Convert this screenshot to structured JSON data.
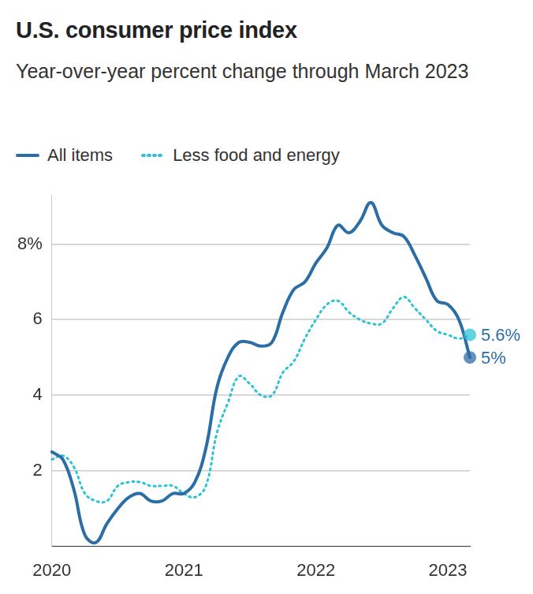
{
  "chart_data": {
    "type": "line",
    "title": "U.S. consumer price index",
    "subtitle": "Year-over-year percent change through March 2023",
    "categories": [
      "2020",
      null,
      null,
      null,
      null,
      null,
      null,
      null,
      null,
      null,
      null,
      null,
      "2021",
      null,
      null,
      null,
      null,
      null,
      null,
      null,
      null,
      null,
      null,
      null,
      "2022",
      null,
      null,
      null,
      null,
      null,
      null,
      null,
      null,
      null,
      null,
      null,
      "2023",
      null,
      null
    ],
    "series": [
      {
        "name": "All items",
        "color": "#2b6ea6",
        "line_style": "solid",
        "values": [
          2.5,
          2.3,
          1.5,
          0.3,
          0.1,
          0.6,
          1.0,
          1.3,
          1.4,
          1.2,
          1.2,
          1.4,
          1.4,
          1.7,
          2.6,
          4.2,
          5.0,
          5.4,
          5.4,
          5.3,
          5.4,
          6.2,
          6.8,
          7.0,
          7.5,
          7.9,
          8.5,
          8.3,
          8.6,
          9.1,
          8.5,
          8.3,
          8.2,
          7.7,
          7.1,
          6.5,
          6.4,
          6.0,
          5.0
        ],
        "value_labels": [
          null,
          null,
          null,
          null,
          null,
          null,
          null,
          null,
          null,
          null,
          null,
          null,
          null,
          null,
          null,
          null,
          null,
          null,
          null,
          null,
          null,
          null,
          null,
          null,
          null,
          null,
          null,
          null,
          null,
          null,
          null,
          null,
          null,
          null,
          null,
          null,
          null,
          null,
          "5%"
        ]
      },
      {
        "name": "Less food and energy",
        "color": "#2cc3d6",
        "line_style": "dotted",
        "values": [
          2.3,
          2.4,
          2.1,
          1.4,
          1.2,
          1.2,
          1.6,
          1.7,
          1.7,
          1.6,
          1.6,
          1.6,
          1.4,
          1.3,
          1.6,
          3.0,
          3.8,
          4.5,
          4.3,
          4.0,
          4.0,
          4.6,
          4.9,
          5.5,
          6.0,
          6.4,
          6.5,
          6.2,
          6.0,
          5.9,
          5.9,
          6.3,
          6.6,
          6.3,
          6.0,
          5.7,
          5.6,
          5.5,
          5.6
        ],
        "value_labels": [
          null,
          null,
          null,
          null,
          null,
          null,
          null,
          null,
          null,
          null,
          null,
          null,
          null,
          null,
          null,
          null,
          null,
          null,
          null,
          null,
          null,
          null,
          null,
          null,
          null,
          null,
          null,
          null,
          null,
          null,
          null,
          null,
          null,
          null,
          null,
          null,
          null,
          null,
          "5.6%"
        ]
      }
    ],
    "ylim": [
      0,
      9.3
    ],
    "yticks": [
      2,
      4,
      6,
      {
        "value": 8,
        "label": "8%"
      }
    ],
    "grid": true
  }
}
